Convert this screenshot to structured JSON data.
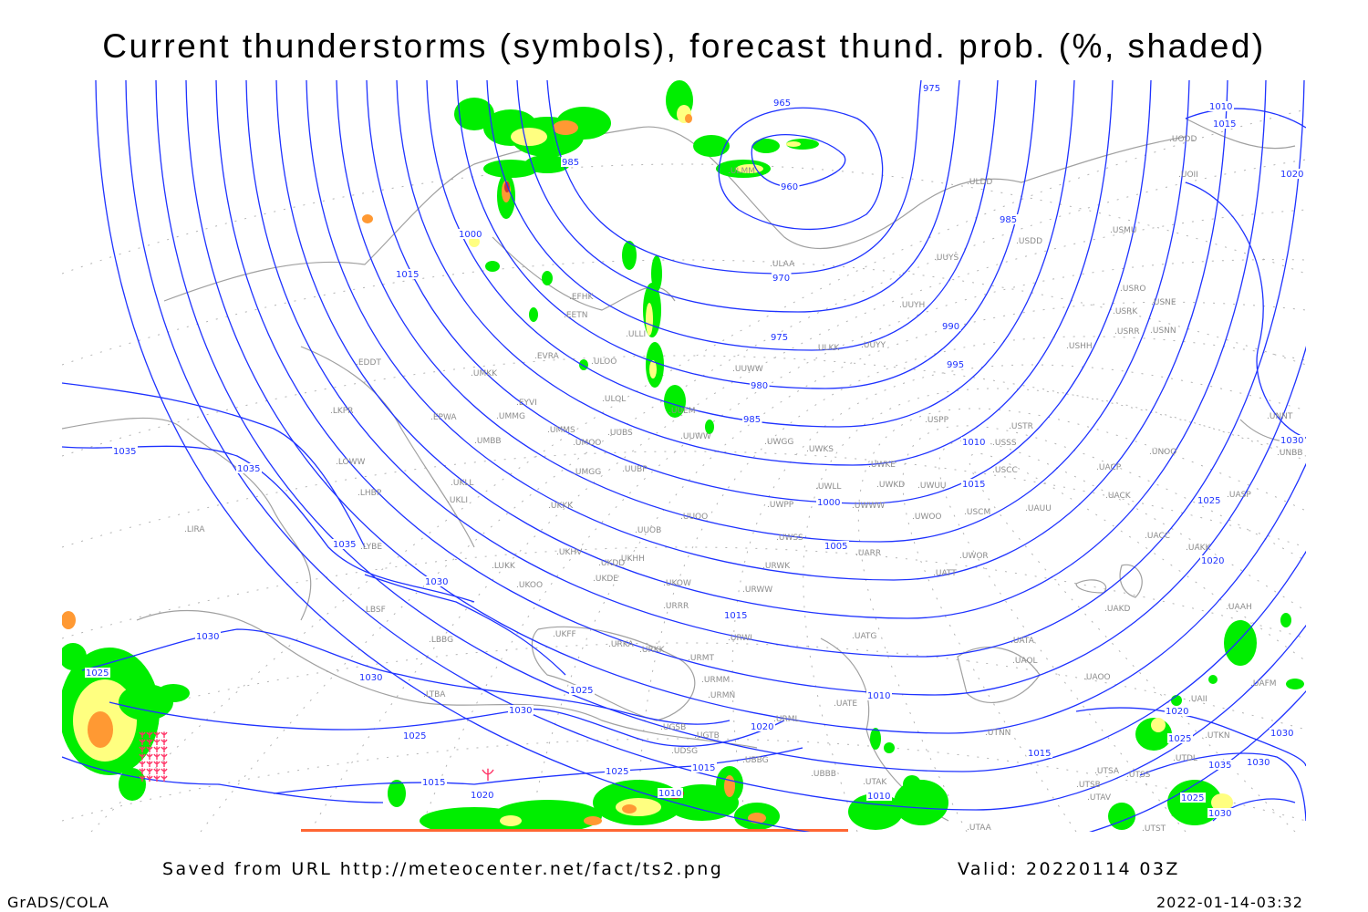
{
  "title": "Current thunderstorms (symbols), forecast thund. prob. (%, shaded)",
  "footer": {
    "source": "Saved from URL http://meteocenter.net/fact/ts2.png",
    "valid": "Valid: 20220114 03Z",
    "software": "GrADS/COLA",
    "timestamp": "2022-01-14-03:32"
  },
  "colors": {
    "isobars": "#1e32ff",
    "coastlines": "#a0a0a0",
    "prob_low": "#00ee00",
    "prob_mid": "#ffff80",
    "prob_high": "#ff9933",
    "prob_max": "#cc3333",
    "thunderstorm_symbol": "#ff3366"
  },
  "station_labels": [
    "EFHK",
    "EETN",
    "EVRA",
    "ULLI",
    "ULOO",
    "ULOL",
    "EYVI",
    "UMMG",
    "EPWA",
    "UMMS",
    "UMOO",
    "UUBS",
    "UMBB",
    "UKLL",
    "UKLI",
    "UMGG",
    "UUBP",
    "UKKK",
    "UUOO",
    "UUOB",
    "LKPR",
    "LOWW",
    "LHBP",
    "LIRA",
    "LYBE",
    "EDDT",
    "UMKK",
    "UKHH",
    "UKDD",
    "UKHV",
    "UKDE",
    "UKOW",
    "UKOO",
    "LUKK",
    "LBSF",
    "LBBG",
    "UKFF",
    "URKA",
    "URKK",
    "URRR",
    "URWW",
    "URWK",
    "UWSS",
    "UWPP",
    "URWI",
    "URMT",
    "URMM",
    "URMN",
    "URML",
    "UGSB",
    "UGTB",
    "UDSG",
    "UBBG",
    "UBBB",
    "LTBA",
    "UATG",
    "UATE",
    "UTAK",
    "UTAA",
    "UTNN",
    "UTSA",
    "UTSS",
    "UTSB",
    "UTAV",
    "UTST",
    "UTDL",
    "UTKN",
    "UAII",
    "UAFM",
    "UAOO",
    "UAOL",
    "UATA",
    "UAKD",
    "UAAH",
    "UAKK",
    "UACC",
    "UACK",
    "UASP",
    "UACP",
    "UNOO",
    "UNNT",
    "UNBB",
    "USTR",
    "USSS",
    "USCC",
    "USCM",
    "UAUU",
    "UWOO",
    "UWOR",
    "UATT",
    "UARR",
    "UWWW",
    "UWLL",
    "UWKE",
    "UWKD",
    "UWUU",
    "UWKS",
    "UWGG",
    "UUWW",
    "UUEM",
    "UUYY",
    "ULKK",
    "UUYH",
    "UUYS",
    "ULAA",
    "ULMM",
    "ULDD",
    "USDD",
    "USMU",
    "USRO",
    "USRK",
    "USNE",
    "USRR",
    "USNN",
    "USHH",
    "USPP",
    "UODD",
    "UOII",
    "UUWW"
  ],
  "isobar_labels": [
    "975",
    "965",
    "960",
    "985",
    "1000",
    "1015",
    "970",
    "975",
    "980",
    "985",
    "990",
    "995",
    "1010",
    "1015",
    "1020",
    "985",
    "1010",
    "1015",
    "1000",
    "1005",
    "1025",
    "1020",
    "1035",
    "1035",
    "1035",
    "1030",
    "1030",
    "1025",
    "1030",
    "1015",
    "1025",
    "1030",
    "1025",
    "1015",
    "1020",
    "1025",
    "1010",
    "1015",
    "1020",
    "1010",
    "1010",
    "1015",
    "1020",
    "1025",
    "1030",
    "1035",
    "1030",
    "1025",
    "1030",
    "1030"
  ]
}
